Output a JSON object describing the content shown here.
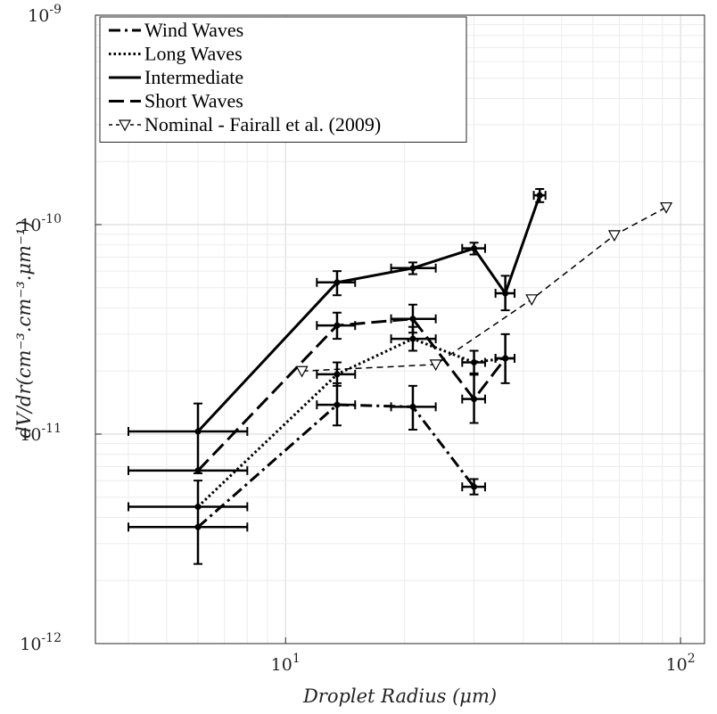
{
  "chart_data": {
    "type": "line",
    "xlabel": "Droplet Radius (μm)",
    "ylabel": "dV/dr(cm⁻³.cm⁻³.μm⁻¹)",
    "xscale": "log",
    "yscale": "log",
    "xlim": [
      3.3,
      115
    ],
    "ylim": [
      1e-12,
      1e-09
    ],
    "grid": true,
    "legend_position": "top-left",
    "x_ticks": [
      {
        "value": 10,
        "base": "10",
        "exp": "1"
      },
      {
        "value": 100,
        "base": "10",
        "exp": "2"
      }
    ],
    "y_ticks": [
      {
        "value": 1e-12,
        "base": "10",
        "exp": "-12"
      },
      {
        "value": 1e-11,
        "base": "10",
        "exp": "-11"
      },
      {
        "value": 1e-10,
        "base": "10",
        "exp": "-10"
      },
      {
        "value": 1e-09,
        "base": "10",
        "exp": "-9"
      }
    ],
    "series": [
      {
        "name": "Wind Waves",
        "dash": "dashdot",
        "points": [
          {
            "x": 6.0,
            "y": 3.6e-12,
            "xerr": [
              4.0,
              8.0
            ],
            "yerr": [
              2.4e-12,
              6e-12
            ]
          },
          {
            "x": 13.5,
            "y": 1.38e-11,
            "xerr": [
              12.0,
              15.0
            ],
            "yerr": [
              1.1e-11,
              1.75e-11
            ]
          },
          {
            "x": 21.0,
            "y": 1.35e-11,
            "xerr": [
              18.5,
              24.0
            ],
            "yerr": [
              1.05e-11,
              1.7e-11
            ]
          },
          {
            "x": 30.0,
            "y": 5.6e-12,
            "xerr": [
              28.0,
              32.0
            ],
            "yerr": [
              5.15e-12,
              6.1e-12
            ]
          }
        ]
      },
      {
        "name": "Long Waves",
        "dash": "dotted",
        "points": [
          {
            "x": 6.0,
            "y": 4.5e-12,
            "xerr": [
              4.0,
              8.0
            ]
          },
          {
            "x": 13.5,
            "y": 1.93e-11,
            "xerr": [
              12.0,
              15.0
            ],
            "yerr": [
              1.7e-11,
              2.2e-11
            ]
          },
          {
            "x": 21.0,
            "y": 2.85e-11,
            "xerr": [
              18.5,
              24.0
            ],
            "yerr": [
              2.5e-11,
              3.25e-11
            ]
          },
          {
            "x": 30.0,
            "y": 2.2e-11,
            "xerr": [
              28.0,
              32.0
            ],
            "yerr": [
              1.95e-11,
              2.5e-11
            ]
          },
          {
            "x": 36.0,
            "y": 2.3e-11,
            "xerr": [
              34.0,
              38.0
            ],
            "yerr": [
              1.75e-11,
              3e-11
            ]
          }
        ]
      },
      {
        "name": "Intermediate",
        "dash": "solid",
        "points": [
          {
            "x": 6.0,
            "y": 1.03e-11,
            "xerr": [
              4.0,
              8.0
            ],
            "yerr": [
              6.5e-12,
              1.4e-11
            ]
          },
          {
            "x": 13.5,
            "y": 5.3e-11,
            "xerr": [
              12.0,
              15.0
            ],
            "yerr": [
              4.6e-11,
              6e-11
            ]
          },
          {
            "x": 21.0,
            "y": 6.2e-11,
            "xerr": [
              18.5,
              24.0
            ],
            "yerr": [
              5.8e-11,
              6.6e-11
            ]
          },
          {
            "x": 30.0,
            "y": 7.7e-11,
            "xerr": [
              28.0,
              32.0
            ],
            "yerr": [
              7.2e-11,
              8.2e-11
            ]
          },
          {
            "x": 36.0,
            "y": 4.7e-11,
            "xerr": [
              34.0,
              38.0
            ],
            "yerr": [
              3.9e-11,
              5.7e-11
            ]
          },
          {
            "x": 44.0,
            "y": 1.38e-10,
            "xerr": [
              42.5,
              45.5
            ],
            "yerr": [
              1.28e-10,
              1.48e-10
            ]
          }
        ]
      },
      {
        "name": "Short Waves",
        "dash": "longdash",
        "points": [
          {
            "x": 6.0,
            "y": 6.7e-12,
            "xerr": [
              4.0,
              8.0
            ]
          },
          {
            "x": 13.5,
            "y": 3.3e-11,
            "xerr": [
              12.0,
              15.0
            ],
            "yerr": [
              2.85e-11,
              3.8e-11
            ]
          },
          {
            "x": 21.0,
            "y": 3.55e-11,
            "xerr": [
              18.5,
              24.0
            ],
            "yerr": [
              3.05e-11,
              4.15e-11
            ]
          },
          {
            "x": 30.0,
            "y": 1.47e-11,
            "xerr": [
              28.0,
              32.0
            ],
            "yerr": [
              1.13e-11,
              1.92e-11
            ]
          },
          {
            "x": 36.0,
            "y": 2.3e-11,
            "xerr": [
              34.0,
              38.0
            ]
          }
        ]
      },
      {
        "name": "Nominal - Fairall et al. (2009)",
        "dash": "thin-dashed",
        "marker": "triangle-down",
        "points": [
          {
            "x": 11.0,
            "y": 2e-11
          },
          {
            "x": 24.0,
            "y": 2.15e-11
          },
          {
            "x": 42.0,
            "y": 4.4e-11
          },
          {
            "x": 68.0,
            "y": 8.9e-11
          },
          {
            "x": 92.0,
            "y": 1.21e-10
          }
        ]
      }
    ]
  }
}
